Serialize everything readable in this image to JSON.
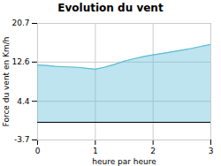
{
  "chart_data": {
    "type": "area",
    "title": "Evolution du vent",
    "xlabel": "heure par heure",
    "ylabel": "Force du vent en Km/h",
    "x": [
      0.0,
      0.15,
      0.3,
      0.5,
      0.7,
      0.85,
      1.0,
      1.15,
      1.3,
      1.5,
      1.7,
      1.85,
      2.0,
      2.2,
      2.4,
      2.6,
      2.8,
      3.0
    ],
    "values": [
      12.0,
      11.9,
      11.7,
      11.6,
      11.5,
      11.3,
      11.1,
      11.5,
      12.0,
      12.8,
      13.4,
      13.8,
      14.1,
      14.5,
      14.9,
      15.3,
      15.8,
      16.3
    ],
    "color": "#5bbcd6",
    "xlim": [
      0,
      3
    ],
    "xticks": [
      0,
      1,
      2,
      3
    ],
    "ylim": [
      -3.7,
      20.7
    ],
    "yticks": [
      -3.7,
      4.4,
      12.6,
      20.7
    ],
    "grid": true
  }
}
